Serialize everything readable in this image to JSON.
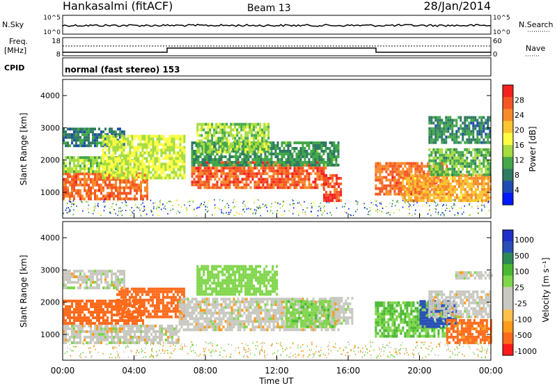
{
  "header": {
    "station": "Hankasalmi (fitACF)",
    "beam": "Beam 13",
    "date": "28/Jan/2014"
  },
  "summary": {
    "nsky_label": "N.Sky",
    "nsky_ticks": [
      "10^5",
      "10^0"
    ],
    "nsearch_label": "N.Search",
    "nsearch_ticks": [
      "10^5",
      "10^0"
    ],
    "freq_label_1": "Freq.",
    "freq_label_2": "[MHz]",
    "freq_ticks": [
      "18",
      "8"
    ],
    "nave_label": "Nave",
    "nave_ticks": [
      "60",
      "0"
    ],
    "cpid_label": "CPID",
    "cpid_text": "normal (fast stereo) 153"
  },
  "colors": {
    "power": [
      "#0019ff",
      "#1f4bb4",
      "#2f7a62",
      "#44a84a",
      "#a6dc40",
      "#fdfd44",
      "#fbc431",
      "#f88b2b",
      "#f55625",
      "#f52020"
    ],
    "velocity_neg": [
      "#ff1a1a",
      "#ff6a1a",
      "#ff9a1a",
      "#ffc04a"
    ],
    "velocity_zero": "#c8c8c0",
    "velocity_pos": [
      "#7fd64a",
      "#4ab833",
      "#2e8a55",
      "#2a50b8",
      "#2030c8"
    ]
  },
  "chart_data": [
    {
      "type": "heatmap",
      "panel": "power",
      "xlabel": "",
      "ylabel": "Slant Range [km]",
      "xlim": [
        0,
        24
      ],
      "ylim": [
        200,
        4500
      ],
      "yticks": [
        "1000",
        "2000",
        "3000",
        "4000"
      ],
      "colorbar_label": "Power [dB]",
      "colorbar_ticks": [
        "4",
        "8",
        "12",
        "16",
        "20",
        "24",
        "28"
      ],
      "colorbar_range": [
        0,
        32
      ],
      "regions": [
        {
          "t0": 0.0,
          "t1": 4.8,
          "r0": 750,
          "r1": 1600,
          "value": 26
        },
        {
          "t0": 0.0,
          "t1": 4.2,
          "r0": 1600,
          "r1": 2100,
          "value": 14
        },
        {
          "t0": 0.0,
          "t1": 3.5,
          "r0": 2400,
          "r1": 3000,
          "value": 8
        },
        {
          "t0": 2.2,
          "t1": 6.8,
          "r0": 1400,
          "r1": 2700,
          "value": 16
        },
        {
          "t0": 7.2,
          "t1": 14.8,
          "r0": 1100,
          "r1": 1900,
          "value": 27
        },
        {
          "t0": 7.2,
          "t1": 15.5,
          "r0": 1800,
          "r1": 2500,
          "value": 10
        },
        {
          "t0": 7.5,
          "t1": 11.5,
          "r0": 2200,
          "r1": 3100,
          "value": 14
        },
        {
          "t0": 14.6,
          "t1": 15.6,
          "r0": 700,
          "r1": 1500,
          "value": 28
        },
        {
          "t0": 17.5,
          "t1": 21.5,
          "r0": 900,
          "r1": 1900,
          "value": 26
        },
        {
          "t0": 19.0,
          "t1": 24.0,
          "r0": 700,
          "r1": 1500,
          "value": 22
        },
        {
          "t0": 20.5,
          "t1": 24.0,
          "r0": 1500,
          "r1": 2300,
          "value": 12
        },
        {
          "t0": 20.5,
          "t1": 24.0,
          "r0": 2500,
          "r1": 3300,
          "value": 9
        }
      ]
    },
    {
      "type": "heatmap",
      "panel": "velocity",
      "xlabel": "Time UT",
      "ylabel": "Slant Range [km]",
      "xlim": [
        0,
        24
      ],
      "ylim": [
        200,
        4500
      ],
      "yticks": [
        "1000",
        "2000",
        "3000",
        "4000"
      ],
      "xticks": [
        "00:00",
        "04:00",
        "08:00",
        "12:00",
        "16:00",
        "20:00",
        "00:00"
      ],
      "colorbar_label": "Velocity [m s⁻¹]",
      "colorbar_ticks": [
        "1000",
        "500",
        "100",
        "25",
        "-25",
        "-100",
        "-500",
        "-1000"
      ],
      "regions": [
        {
          "t0": 0.0,
          "t1": 6.5,
          "r0": 700,
          "r1": 1300,
          "value": 0
        },
        {
          "t0": 0.0,
          "t1": 4.5,
          "r0": 1300,
          "r1": 2000,
          "value": -150
        },
        {
          "t0": 3.0,
          "t1": 6.8,
          "r0": 1500,
          "r1": 2400,
          "value": -200
        },
        {
          "t0": 0.0,
          "t1": 3.5,
          "r0": 2400,
          "r1": 3000,
          "value": 0
        },
        {
          "t0": 6.5,
          "t1": 15.5,
          "r0": 1100,
          "r1": 2100,
          "value": 0
        },
        {
          "t0": 12.5,
          "t1": 15.2,
          "r0": 1200,
          "r1": 2000,
          "value": 80
        },
        {
          "t0": 7.5,
          "t1": 12.0,
          "r0": 2200,
          "r1": 3100,
          "value": 60
        },
        {
          "t0": 15.0,
          "t1": 16.2,
          "r0": 1300,
          "r1": 2100,
          "value": 0
        },
        {
          "t0": 17.5,
          "t1": 21.5,
          "r0": 900,
          "r1": 2000,
          "value": 100
        },
        {
          "t0": 20.0,
          "t1": 22.0,
          "r0": 1200,
          "r1": 2000,
          "value": 700
        },
        {
          "t0": 21.5,
          "t1": 24.0,
          "r0": 700,
          "r1": 1400,
          "value": -120
        },
        {
          "t0": 20.5,
          "t1": 24.0,
          "r0": 1500,
          "r1": 2300,
          "value": 0
        },
        {
          "t0": 22.0,
          "t1": 24.0,
          "r0": 2700,
          "r1": 2950,
          "value": 0
        }
      ]
    }
  ]
}
